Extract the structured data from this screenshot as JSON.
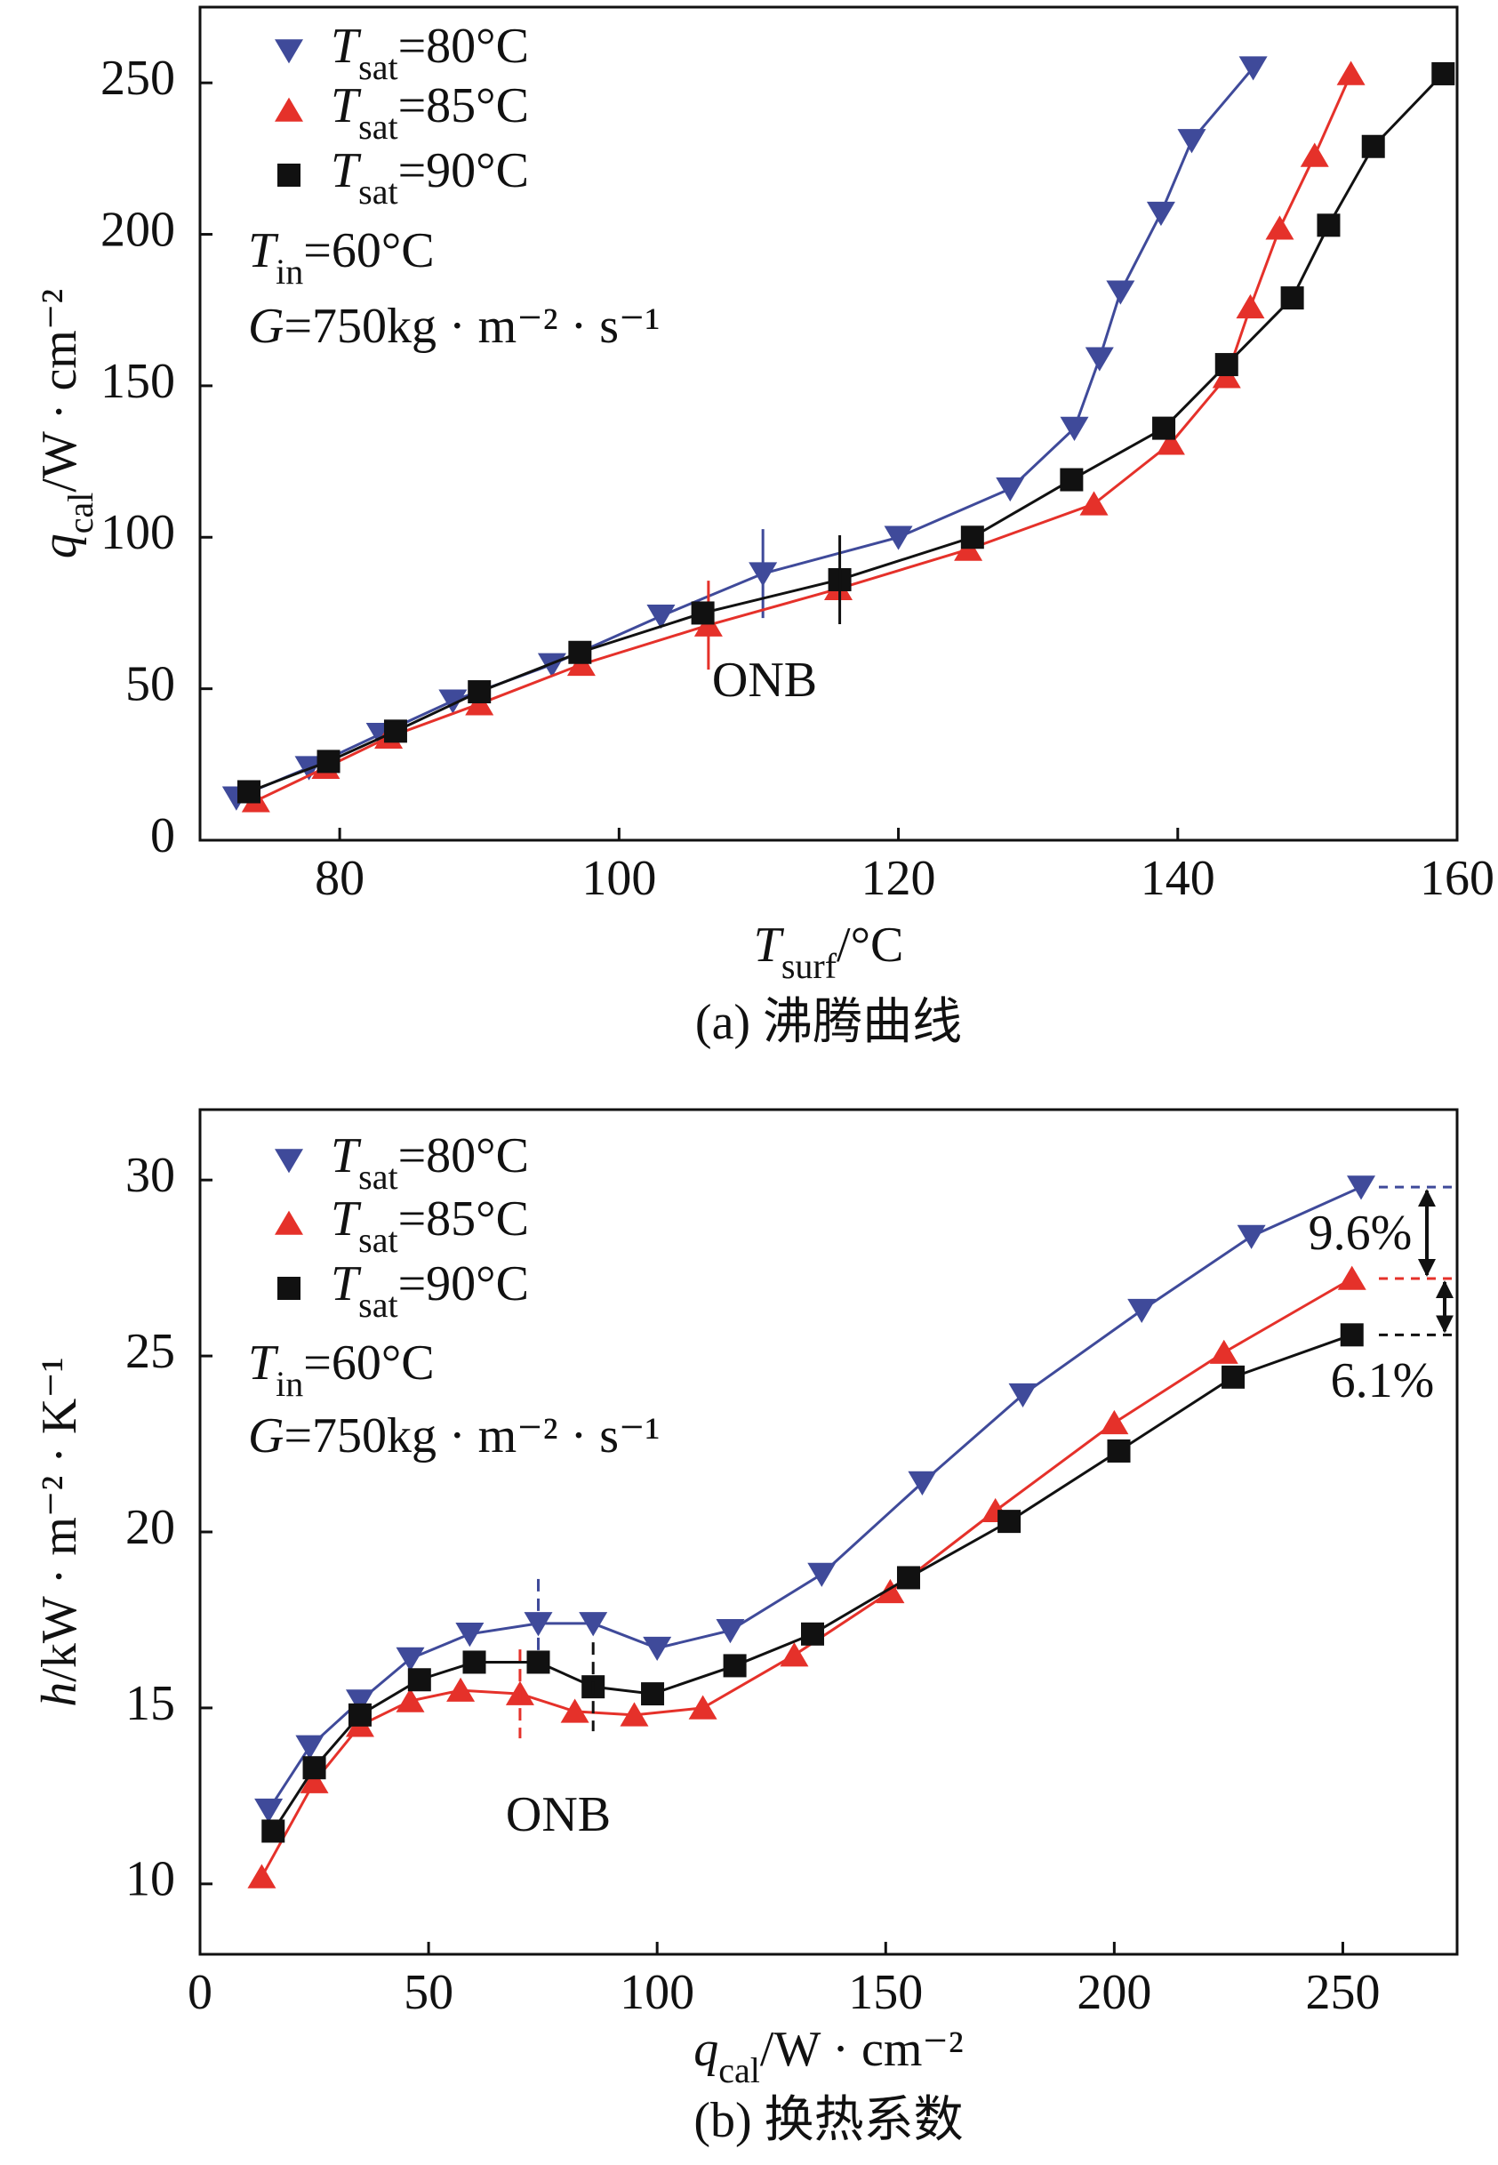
{
  "chart_data": [
    {
      "type": "line",
      "caption": "(a) 沸腾曲线",
      "xlabel": "Tsurf/°C",
      "ylabel": "qcal/W · cm⁻²",
      "xlim": [
        70,
        160
      ],
      "xticks": [
        80,
        100,
        120,
        140,
        160
      ],
      "ylim": [
        0,
        275
      ],
      "yticks": [
        0,
        50,
        100,
        150,
        200,
        250
      ],
      "notes": [
        "Tin=60°C",
        "G=750kg · m⁻² · s⁻¹"
      ],
      "annotations": [
        "ONB"
      ],
      "series": [
        {
          "name": "Tsat=80°C",
          "color": "#3f4a9a",
          "marker": "triangle-down",
          "x": [
            72.6,
            77.8,
            82.9,
            88.1,
            95.2,
            103,
            110.3,
            120,
            128,
            132.6,
            134.4,
            135.9,
            138.8,
            141,
            145.4
          ],
          "values": [
            14,
            24,
            35,
            46,
            58,
            74,
            88,
            100,
            116,
            136,
            159,
            181,
            207,
            231,
            255
          ]
        },
        {
          "name": "Tsat=85°C",
          "color": "#e5312a",
          "marker": "triangle-up",
          "x": [
            74,
            79,
            83.5,
            90,
            97.3,
            106.4,
            115.7,
            125,
            134,
            139.5,
            143.5,
            145.2,
            147.3,
            149.8,
            152.4
          ],
          "values": [
            13,
            24,
            34,
            45,
            58,
            71,
            83,
            96,
            111,
            131,
            153,
            176,
            202,
            226,
            253
          ]
        },
        {
          "name": "Tsat=90°C",
          "color": "#111111",
          "marker": "square",
          "x": [
            73.5,
            79.2,
            84,
            90,
            97.2,
            106,
            115.8,
            125.3,
            132.4,
            139,
            143.5,
            148.2,
            150.8,
            154,
            159
          ],
          "values": [
            16,
            26,
            36,
            49,
            62,
            75,
            86,
            100,
            119,
            136,
            157,
            179,
            203,
            229,
            253
          ]
        }
      ]
    },
    {
      "type": "line",
      "caption": "(b) 换热系数",
      "xlabel": "qcal/W · cm⁻²",
      "ylabel": "h/kW · m⁻² · K⁻¹",
      "xlim": [
        0,
        275
      ],
      "xticks": [
        0,
        50,
        100,
        150,
        200,
        250
      ],
      "ylim": [
        8,
        32
      ],
      "yticks": [
        10,
        15,
        20,
        25,
        30
      ],
      "notes": [
        "Tin=60°C",
        "G=750kg · m⁻² · s⁻¹"
      ],
      "annotations": [
        "ONB",
        "9.6%",
        "6.1%"
      ],
      "series": [
        {
          "name": "Tsat=80°C",
          "color": "#3f4a9a",
          "marker": "triangle-down",
          "x": [
            15,
            24,
            35,
            46,
            59,
            74,
            86,
            100,
            116,
            136,
            158,
            180,
            206,
            230,
            254
          ],
          "values": [
            12.1,
            13.9,
            15.2,
            16.4,
            17.1,
            17.4,
            17.4,
            16.7,
            17.2,
            18.8,
            21.4,
            23.9,
            26.3,
            28.4,
            29.8
          ]
        },
        {
          "name": "Tsat=85°C",
          "color": "#e5312a",
          "marker": "triangle-up",
          "x": [
            13.5,
            25,
            35,
            46,
            57,
            70,
            82,
            95,
            110,
            130,
            151,
            174,
            200,
            224,
            252
          ],
          "values": [
            10.2,
            12.9,
            14.5,
            15.2,
            15.5,
            15.4,
            14.9,
            14.8,
            15.0,
            16.5,
            18.3,
            20.6,
            23.1,
            25.1,
            27.2
          ]
        },
        {
          "name": "Tsat=90°C",
          "color": "#111111",
          "marker": "square",
          "x": [
            16,
            25,
            35,
            48,
            60,
            74,
            86,
            99,
            117,
            134,
            155,
            177,
            201,
            226,
            252
          ],
          "values": [
            11.5,
            13.3,
            14.8,
            15.8,
            16.3,
            16.3,
            15.6,
            15.4,
            16.2,
            17.1,
            18.7,
            20.3,
            22.3,
            24.4,
            25.6
          ]
        }
      ]
    }
  ]
}
